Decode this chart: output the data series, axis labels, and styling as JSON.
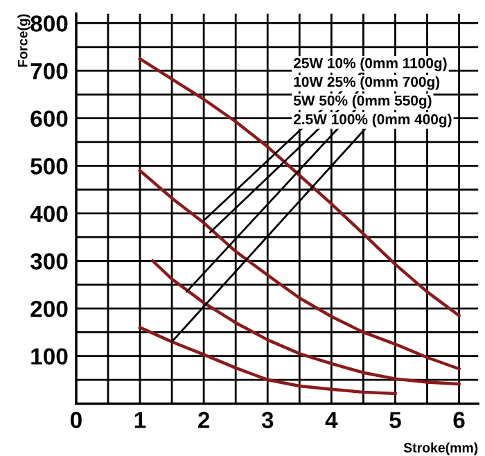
{
  "chart_data": {
    "type": "line",
    "xlabel": "Stroke(mm)",
    "ylabel": "Force(g)",
    "xlim": [
      0,
      6.3
    ],
    "ylim": [
      0,
      820
    ],
    "xticks": [
      0,
      {
        "value": 0.5,
        "label": null
      },
      1,
      {
        "value": 1.5,
        "label": null
      },
      2,
      {
        "value": 2.5,
        "label": null
      },
      3,
      {
        "value": 3.5,
        "label": null
      },
      4,
      {
        "value": 4.5,
        "label": null
      },
      5,
      {
        "value": 5.5,
        "label": null
      },
      6
    ],
    "yticks": [
      {
        "value": 0,
        "label": null
      },
      {
        "value": 50,
        "label": null
      },
      100,
      {
        "value": 150,
        "label": null
      },
      200,
      {
        "value": 250,
        "label": null
      },
      300,
      {
        "value": 350,
        "label": null
      },
      400,
      {
        "value": 450,
        "label": null
      },
      500,
      {
        "value": 550,
        "label": null
      },
      600,
      {
        "value": 650,
        "label": null
      },
      700,
      {
        "value": 750,
        "label": null
      },
      800
    ],
    "grid": true,
    "legend": false,
    "marker": "none",
    "line_style": "solid",
    "series": [
      {
        "color": "#8b1a1a",
        "x": [
          1,
          2,
          2.5,
          3,
          3.5,
          4,
          4.5,
          5,
          5.5,
          6
        ],
        "values": [
          725,
          640,
          593,
          540,
          480,
          420,
          357,
          293,
          235,
          185
        ]
      },
      {
        "color": "#8b1a1a",
        "x": [
          1,
          1.5,
          2,
          2.5,
          3,
          3.5,
          4,
          4.5,
          5,
          5.5,
          6
        ],
        "values": [
          490,
          432,
          380,
          320,
          270,
          222,
          183,
          150,
          125,
          97,
          73
        ]
      },
      {
        "color": "#8b1a1a",
        "x": [
          1.2,
          1.5,
          2,
          2.5,
          3,
          3.5,
          4,
          4.5,
          5,
          5.5,
          6
        ],
        "values": [
          300,
          262,
          212,
          170,
          134,
          105,
          84,
          65,
          52,
          45,
          41
        ]
      },
      {
        "color": "#8b1a1a",
        "x": [
          1,
          1.5,
          2,
          2.5,
          3,
          3.5,
          4,
          4.5,
          5
        ],
        "values": [
          160,
          130,
          103,
          75,
          50,
          37,
          30,
          24,
          21
        ]
      }
    ],
    "annotations": [
      {
        "text": "25W 10% (0mm 1100g)",
        "x": 2.0,
        "y": 385
      },
      {
        "text": "10W 25% (0mm 700g)",
        "x": 2.1,
        "y": 360
      },
      {
        "text": "5W 50% (0mm 550g)",
        "x": 1.73,
        "y": 235
      },
      {
        "text": "2.5W 100% (0mm 400g)",
        "x": 1.5,
        "y": 130
      }
    ]
  }
}
